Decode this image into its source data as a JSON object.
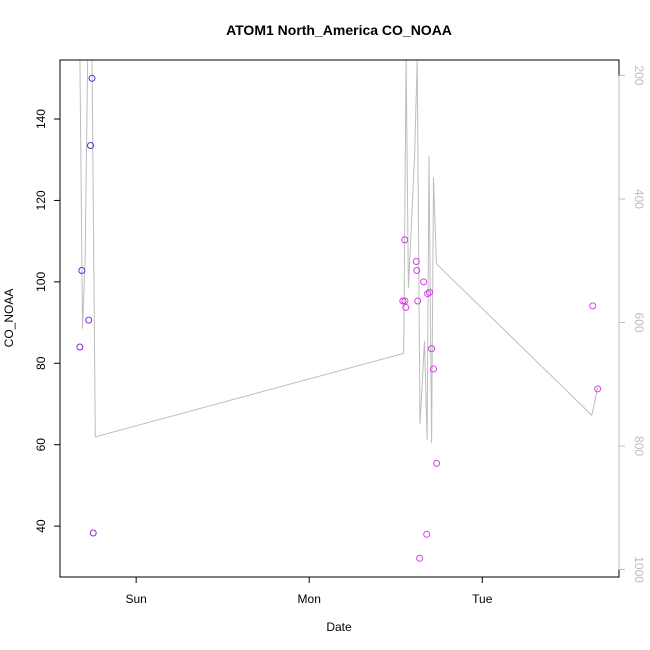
{
  "chart_data": {
    "type": "scatter",
    "title": "ATOM1 North_America CO_NOAA",
    "xlabel": "Date",
    "ylabel": "CO_NOAA",
    "x_ticks": [
      "Sun",
      "Mon",
      "Tue"
    ],
    "x_tick_days": [
      1,
      2,
      3
    ],
    "xlim": [
      0.56,
      3.79
    ],
    "ylim": [
      27.5,
      154.5
    ],
    "y_ticks": [
      40,
      60,
      80,
      100,
      120,
      140
    ],
    "right_axis": {
      "ticks": [
        200,
        400,
        600,
        800,
        1000
      ],
      "lim": [
        1012,
        175
      ],
      "line_color": "#bdbdbd"
    },
    "grid": false,
    "points": [
      {
        "x": 0.675,
        "y": 84.0,
        "color": "#8b2be2"
      },
      {
        "x": 0.686,
        "y": 102.8,
        "color": "#7a22e6"
      },
      {
        "x": 0.726,
        "y": 90.6,
        "color": "#8b2be2"
      },
      {
        "x": 0.736,
        "y": 133.5,
        "color": "#6a1fe8"
      },
      {
        "x": 0.745,
        "y": 150.0,
        "color": "#6a1fe8"
      },
      {
        "x": 0.752,
        "y": 38.3,
        "color": "#8b2be2"
      },
      {
        "x": 2.541,
        "y": 95.3,
        "color": "#d63fe8"
      },
      {
        "x": 2.552,
        "y": 110.3,
        "color": "#c838e8"
      },
      {
        "x": 2.553,
        "y": 95.3,
        "color": "#d63fe8"
      },
      {
        "x": 2.558,
        "y": 93.7,
        "color": "#d63fe8"
      },
      {
        "x": 2.618,
        "y": 105.0,
        "color": "#d63fe8"
      },
      {
        "x": 2.621,
        "y": 102.8,
        "color": "#d63fe8"
      },
      {
        "x": 2.627,
        "y": 95.3,
        "color": "#d63fe8"
      },
      {
        "x": 2.638,
        "y": 32.1,
        "color": "#d63fe8"
      },
      {
        "x": 2.661,
        "y": 100.0,
        "color": "#d63fe8"
      },
      {
        "x": 2.679,
        "y": 38.0,
        "color": "#d63fe8"
      },
      {
        "x": 2.684,
        "y": 97.1,
        "color": "#d63fe8"
      },
      {
        "x": 2.695,
        "y": 97.4,
        "color": "#d63fe8"
      },
      {
        "x": 2.707,
        "y": 83.6,
        "color": "#d63fe8"
      },
      {
        "x": 2.718,
        "y": 78.6,
        "color": "#e23fe0"
      },
      {
        "x": 2.736,
        "y": 55.4,
        "color": "#e23fe0"
      },
      {
        "x": 3.638,
        "y": 94.1,
        "color": "#e23fe0"
      },
      {
        "x": 3.667,
        "y": 73.7,
        "color": "#e23fe0"
      }
    ],
    "pressure_series": [
      {
        "x": 0.675,
        "p": 170
      },
      {
        "x": 0.69,
        "p": 610
      },
      {
        "x": 0.705,
        "p": 500
      },
      {
        "x": 0.72,
        "p": 170
      },
      {
        "x": 0.745,
        "p": 170
      },
      {
        "x": 0.764,
        "p": 785
      },
      {
        "x": 2.546,
        "p": 650
      },
      {
        "x": 2.56,
        "p": 170
      },
      {
        "x": 2.573,
        "p": 545
      },
      {
        "x": 2.609,
        "p": 330
      },
      {
        "x": 2.624,
        "p": 175
      },
      {
        "x": 2.64,
        "p": 765
      },
      {
        "x": 2.666,
        "p": 630
      },
      {
        "x": 2.681,
        "p": 790
      },
      {
        "x": 2.692,
        "p": 330
      },
      {
        "x": 2.707,
        "p": 795
      },
      {
        "x": 2.718,
        "p": 365
      },
      {
        "x": 2.735,
        "p": 505
      },
      {
        "x": 3.633,
        "p": 750
      },
      {
        "x": 3.667,
        "p": 705
      }
    ]
  }
}
